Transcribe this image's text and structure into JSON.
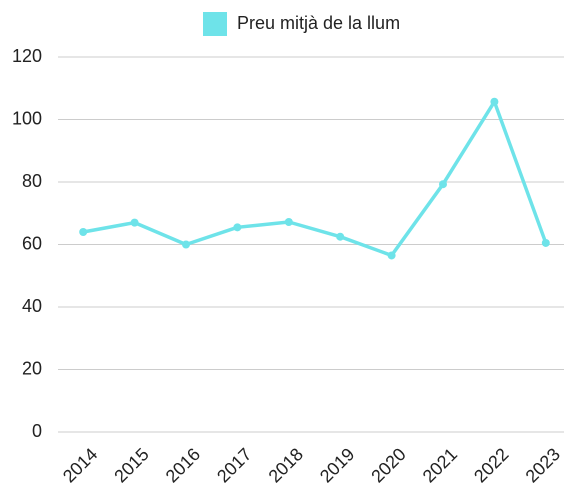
{
  "chart_data": {
    "type": "line",
    "categories": [
      "2014",
      "2015",
      "2016",
      "2017",
      "2018",
      "2019",
      "2020",
      "2021",
      "2022",
      "2023"
    ],
    "series": [
      {
        "name": "Preu mitjà de la llum",
        "color": "#6ee3e9",
        "values": [
          64,
          67,
          60,
          65.5,
          67.2,
          62.5,
          56.5,
          79.3,
          105.7,
          60.5
        ]
      }
    ],
    "ylim": [
      0,
      120
    ],
    "yticks": [
      0,
      20,
      40,
      60,
      80,
      100,
      120
    ],
    "grid": true,
    "legend": "top"
  }
}
